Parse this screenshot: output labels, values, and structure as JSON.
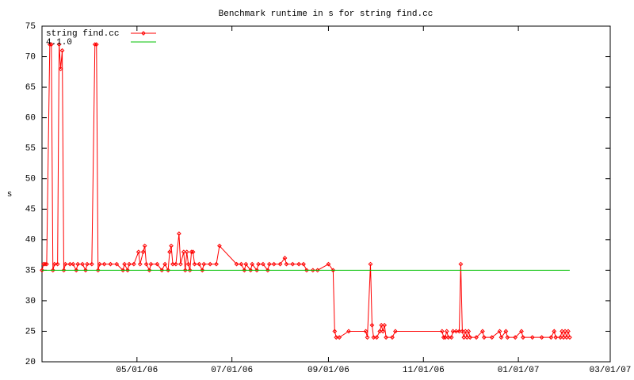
{
  "chart_data": {
    "type": "line",
    "title": "Benchmark runtime in s for string find.cc",
    "y_label": "s",
    "xlim": [
      "2006-03-01",
      "2007-03-01"
    ],
    "xticks": [
      {
        "value": "2006-05-01",
        "label": "05/01/06"
      },
      {
        "value": "2006-07-01",
        "label": "07/01/06"
      },
      {
        "value": "2006-09-01",
        "label": "09/01/06"
      },
      {
        "value": "2006-11-01",
        "label": "11/01/06"
      },
      {
        "value": "2007-01-01",
        "label": "01/01/07"
      },
      {
        "value": "2007-03-01",
        "label": "03/01/07"
      }
    ],
    "ylim": [
      20,
      75
    ],
    "yticks": [
      20,
      25,
      30,
      35,
      40,
      45,
      50,
      55,
      60,
      65,
      70,
      75
    ],
    "legend": "top-left",
    "series": [
      {
        "name": "string find.cc",
        "color": "#ff0000",
        "markers": true,
        "x": [
          "2006-03-01",
          "2006-03-02",
          "2006-03-03",
          "2006-03-04",
          "2006-03-06",
          "2006-03-07",
          "2006-03-08",
          "2006-03-09",
          "2006-03-11",
          "2006-03-12",
          "2006-03-13",
          "2006-03-14",
          "2006-03-15",
          "2006-03-16",
          "2006-03-19",
          "2006-03-21",
          "2006-03-23",
          "2006-03-24",
          "2006-03-27",
          "2006-03-29",
          "2006-03-30",
          "2006-04-02",
          "2006-04-04",
          "2006-04-05",
          "2006-04-06",
          "2006-04-07",
          "2006-04-10",
          "2006-04-14",
          "2006-04-18",
          "2006-04-22",
          "2006-04-23",
          "2006-04-25",
          "2006-04-26",
          "2006-04-29",
          "2006-05-02",
          "2006-05-03",
          "2006-05-05",
          "2006-05-06",
          "2006-05-07",
          "2006-05-09",
          "2006-05-10",
          "2006-05-14",
          "2006-05-17",
          "2006-05-19",
          "2006-05-21",
          "2006-05-22",
          "2006-05-23",
          "2006-05-24",
          "2006-05-26",
          "2006-05-28",
          "2006-05-29",
          "2006-05-31",
          "2006-06-01",
          "2006-06-02",
          "2006-06-03",
          "2006-06-04",
          "2006-06-05",
          "2006-06-06",
          "2006-06-07",
          "2006-06-10",
          "2006-06-12",
          "2006-06-13",
          "2006-06-17",
          "2006-06-21",
          "2006-06-23",
          "2006-07-04",
          "2006-07-07",
          "2006-07-09",
          "2006-07-10",
          "2006-07-13",
          "2006-07-14",
          "2006-07-17",
          "2006-07-18",
          "2006-07-21",
          "2006-07-24",
          "2006-07-25",
          "2006-07-28",
          "2006-08-01",
          "2006-08-04",
          "2006-08-05",
          "2006-08-09",
          "2006-08-13",
          "2006-08-16",
          "2006-08-18",
          "2006-08-22",
          "2006-08-25",
          "2006-09-01",
          "2006-09-04",
          "2006-09-05",
          "2006-09-06",
          "2006-09-08",
          "2006-09-14",
          "2006-09-25",
          "2006-09-26",
          "2006-09-28",
          "2006-09-29",
          "2006-09-30",
          "2006-10-02",
          "2006-10-04",
          "2006-10-05",
          "2006-10-06",
          "2006-10-07",
          "2006-10-08",
          "2006-10-12",
          "2006-10-14",
          "2006-11-13",
          "2006-11-14",
          "2006-11-15",
          "2006-11-16",
          "2006-11-17",
          "2006-11-19",
          "2006-11-20",
          "2006-11-22",
          "2006-11-24",
          "2006-11-25",
          "2006-11-26",
          "2006-11-27",
          "2006-11-28",
          "2006-11-29",
          "2006-11-30",
          "2006-12-01",
          "2006-12-05",
          "2006-12-09",
          "2006-12-10",
          "2006-12-15",
          "2006-12-20",
          "2006-12-21",
          "2006-12-24",
          "2006-12-25",
          "2006-12-30",
          "2007-01-03",
          "2007-01-04",
          "2007-01-10",
          "2007-01-16",
          "2007-01-22",
          "2007-01-24",
          "2007-01-25",
          "2007-01-28",
          "2007-01-29",
          "2007-01-30",
          "2007-01-31",
          "2007-02-01",
          "2007-02-02",
          "2007-02-03"
        ],
        "values": [
          35,
          36,
          36,
          36,
          72,
          72,
          35,
          36,
          36,
          72,
          68,
          71,
          35,
          36,
          36,
          36,
          35,
          36,
          36,
          35,
          36,
          36,
          72,
          72,
          35,
          36,
          36,
          36,
          36,
          35,
          36,
          35,
          36,
          36,
          38,
          36,
          38,
          39,
          36,
          35,
          36,
          36,
          35,
          36,
          35,
          38,
          39,
          36,
          36,
          41,
          36,
          38,
          35,
          38,
          36,
          35,
          38,
          38,
          36,
          36,
          35,
          36,
          36,
          36,
          39,
          36,
          36,
          35,
          36,
          35,
          36,
          35,
          36,
          36,
          35,
          36,
          36,
          36,
          37,
          36,
          36,
          36,
          36,
          35,
          35,
          35,
          36,
          35,
          25,
          24,
          24,
          25,
          25,
          24,
          36,
          26,
          24,
          24,
          25,
          26,
          25,
          26,
          24,
          24,
          25,
          25,
          24,
          24,
          25,
          24,
          24,
          25,
          25,
          25,
          36,
          25,
          24,
          25,
          24,
          25,
          24,
          24,
          25,
          24,
          24,
          25,
          24,
          25,
          24,
          24,
          25,
          24,
          24,
          24,
          24,
          25,
          24,
          24,
          25,
          24,
          25,
          24,
          25,
          24
        ]
      },
      {
        "name": "4.1.0",
        "color": "#00c000",
        "markers": false,
        "x": [
          "2006-03-01",
          "2007-02-03"
        ],
        "values": [
          35,
          35
        ]
      }
    ]
  }
}
